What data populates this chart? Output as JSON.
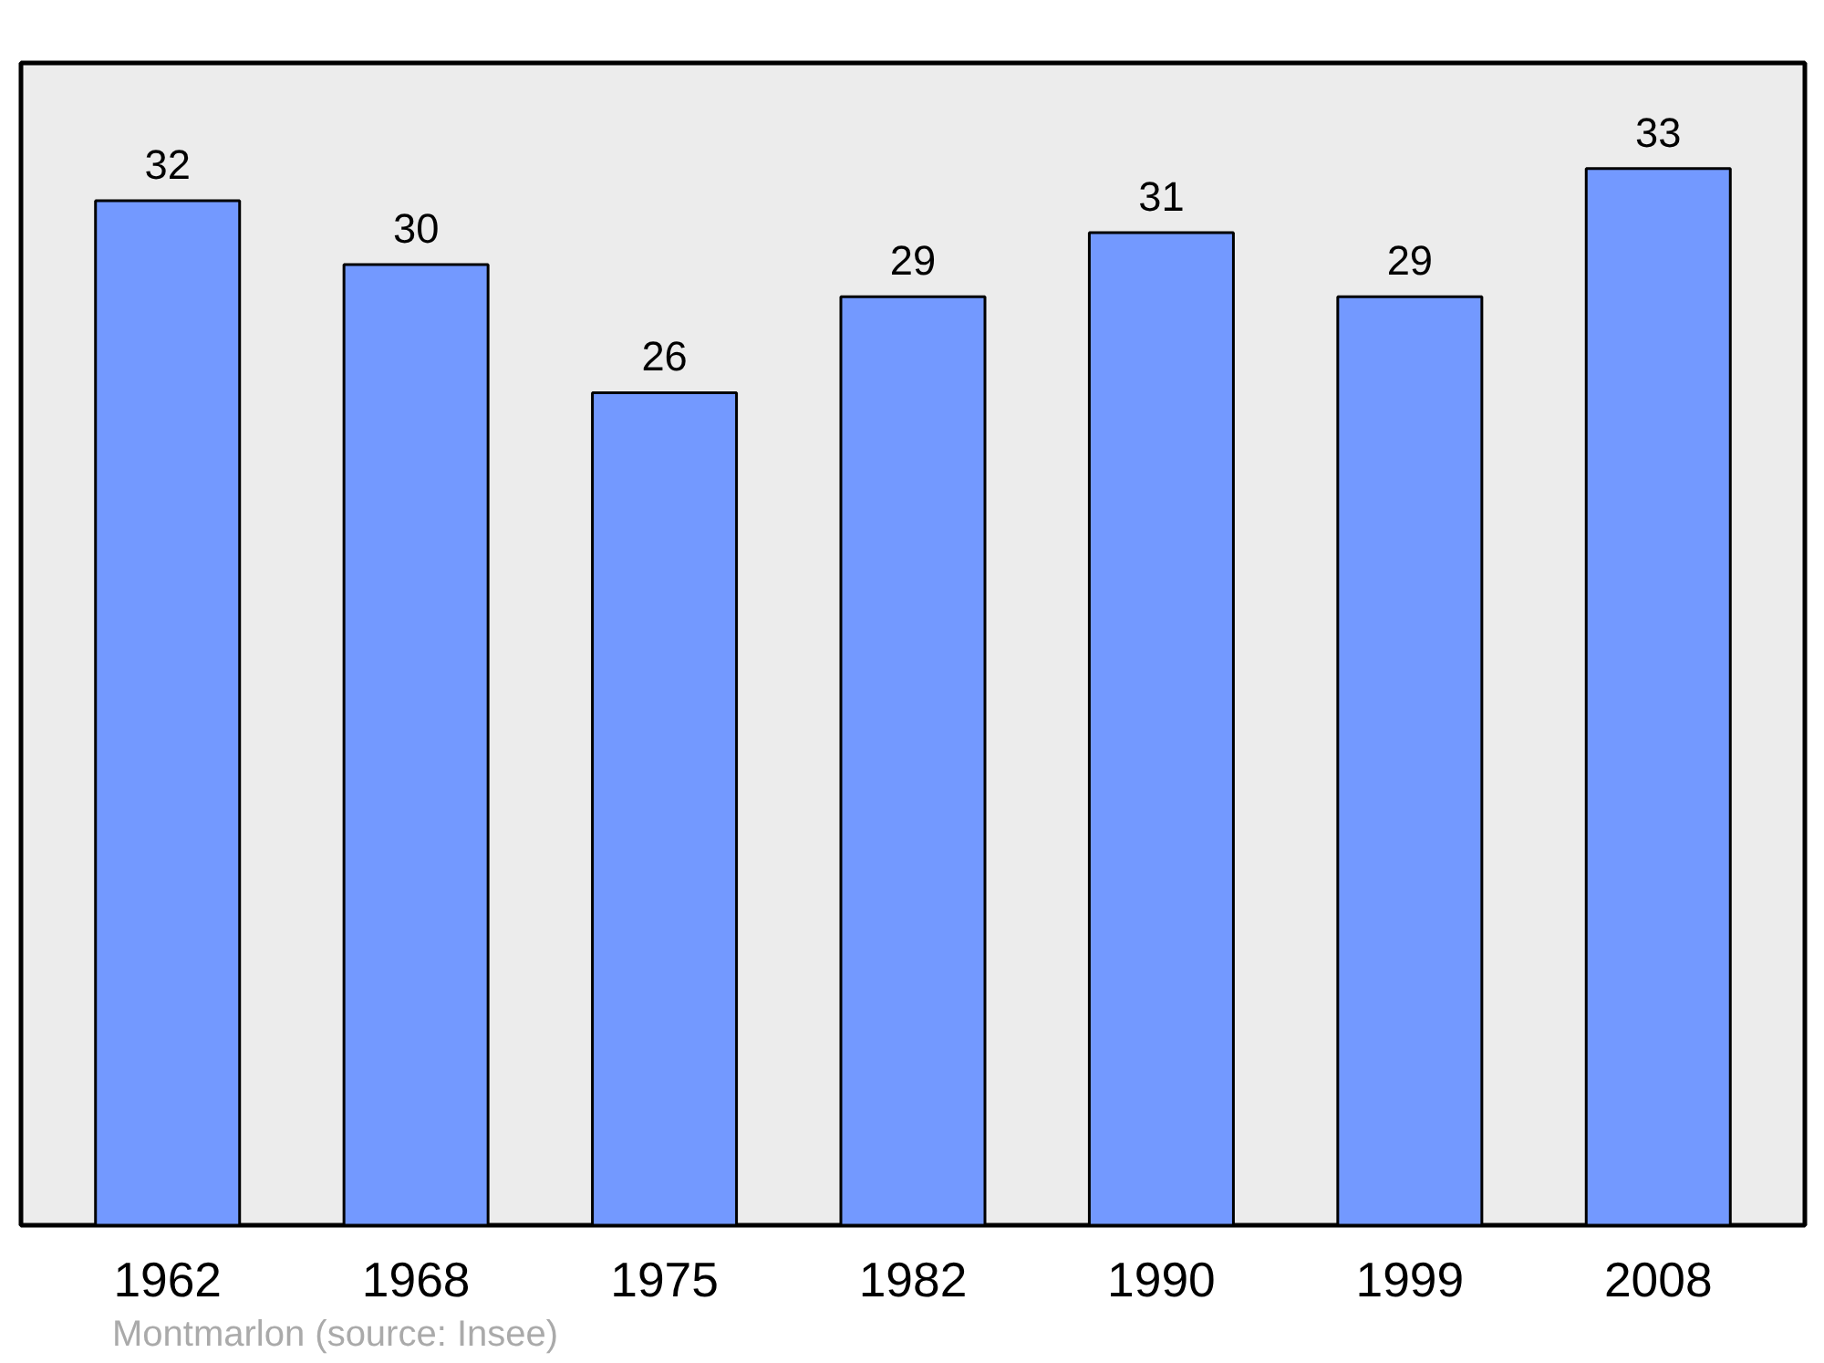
{
  "chart_data": {
    "type": "bar",
    "categories": [
      "1962",
      "1968",
      "1975",
      "1982",
      "1990",
      "1999",
      "2008"
    ],
    "values": [
      32,
      30,
      26,
      29,
      31,
      29,
      33
    ],
    "color": "#7399ff",
    "data_labels": true,
    "grid": false,
    "annotations": [
      "Montmarlon    (source: Insee)"
    ]
  }
}
